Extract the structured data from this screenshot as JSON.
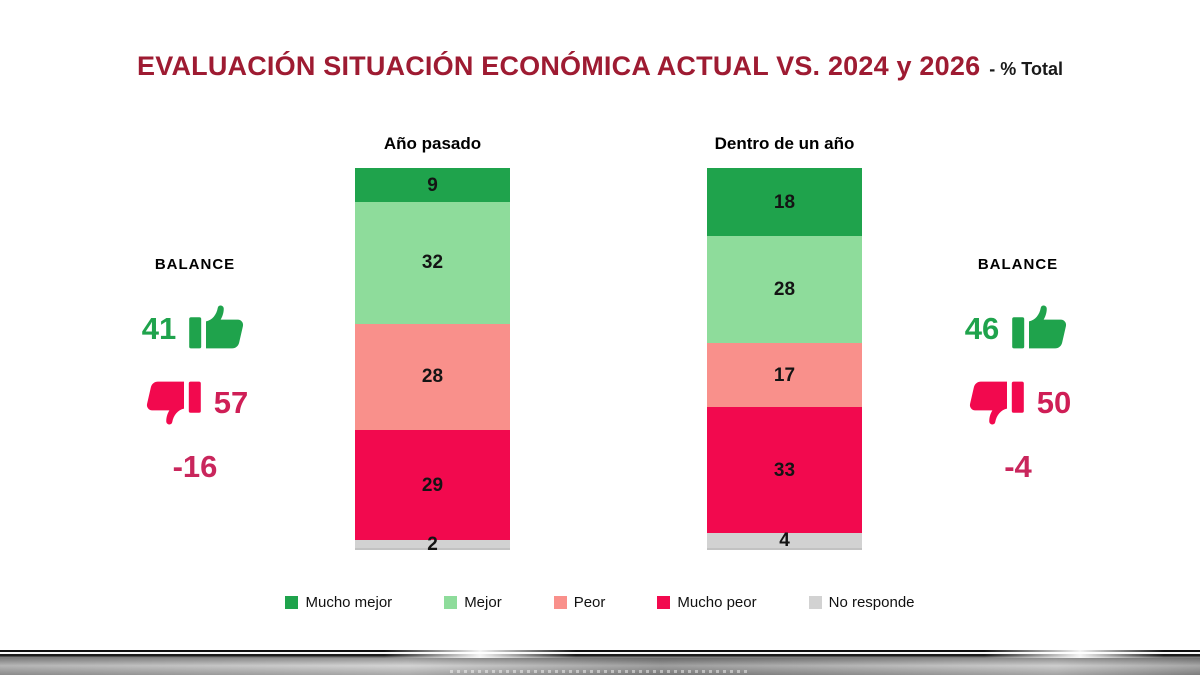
{
  "title": {
    "main": "EVALUACIÓN SITUACIÓN ECONÓMICA ACTUAL VS. 2024 y 2026",
    "suffix": "- % Total"
  },
  "chart_data": {
    "type": "bar",
    "variant": "stacked-column-vertical",
    "unit": "% Total",
    "value_range": [
      0,
      100
    ],
    "stack_categories": [
      "Mucho mejor",
      "Mejor",
      "Peor",
      "Mucho peor",
      "No responde"
    ],
    "colors": [
      "#1fa34c",
      "#8edc9b",
      "#f9908b",
      "#f2094e",
      "#d2d2d2"
    ],
    "columns": [
      {
        "title": "Año pasado",
        "values": [
          9,
          32,
          28,
          29,
          2
        ]
      },
      {
        "title": "Dentro de un año",
        "values": [
          18,
          28,
          17,
          33,
          4
        ]
      }
    ],
    "legend": [
      "Mucho mejor",
      "Mejor",
      "Peor",
      "Mucho peor",
      "No responde"
    ],
    "legend_position": "bottom"
  },
  "balance_left": {
    "label": "BALANCE",
    "positive": "41",
    "negative": "57",
    "net": "-16"
  },
  "balance_right": {
    "label": "BALANCE",
    "positive": "46",
    "negative": "50",
    "net": "-4"
  },
  "colors": {
    "title": "#9e1b32",
    "balance_positive": "#1fa34c",
    "balance_negative": "#cf1e56",
    "balance_net": "#c9265c",
    "thumb_up": "#1fa34c",
    "thumb_down": "#f2094e"
  }
}
